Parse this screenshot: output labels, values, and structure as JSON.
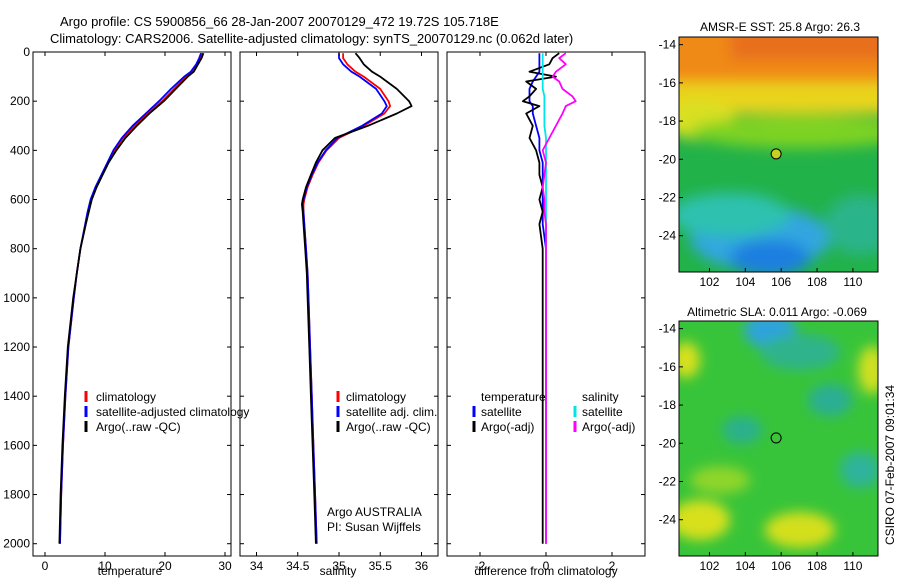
{
  "header": {
    "line1": "Argo profile: CS 5900856_66 28-Jan-2007 20070129_472 19.72S 105.718E",
    "line2": "Climatology: CARS2006. Satellite-adjusted climatology: synTS_20070129.nc (0.062d later)"
  },
  "side_label": "CSIRO 07-Feb-2007 09:01:34",
  "colors": {
    "climatology": "#ff0000",
    "satellite": "#0000ff",
    "argo": "#000000",
    "salinity_satellite": "#00e5e5",
    "salinity_argo": "#ff00ff"
  },
  "chart_data": [
    {
      "type": "line",
      "id": "temperature",
      "xlabel": "temperature",
      "xlim": [
        -2,
        31
      ],
      "ylim": [
        0,
        2050
      ],
      "x_ticks": [
        0,
        10,
        20,
        30
      ],
      "y_ticks": [
        0,
        200,
        400,
        600,
        800,
        1000,
        1200,
        1400,
        1600,
        1800,
        2000
      ],
      "y_reversed": true,
      "depth": [
        5,
        25,
        50,
        80,
        100,
        150,
        200,
        250,
        300,
        350,
        400,
        450,
        500,
        550,
        600,
        650,
        700,
        800,
        900,
        1000,
        1200,
        1400,
        1600,
        1800,
        2000
      ],
      "series": [
        {
          "name": "climatology",
          "color": "#ff0000",
          "values": [
            26.2,
            25.9,
            25.4,
            24.5,
            23.5,
            21.5,
            19.5,
            17.2,
            14.9,
            13.0,
            11.6,
            10.5,
            9.5,
            8.5,
            7.7,
            7.2,
            6.8,
            5.9,
            5.3,
            4.8,
            3.9,
            3.4,
            3.0,
            2.7,
            2.5
          ]
        },
        {
          "name": "satellite-adjusted climatology",
          "color": "#0000ff",
          "values": [
            26.0,
            25.7,
            25.2,
            24.3,
            23.2,
            21.0,
            19.0,
            16.8,
            14.6,
            12.8,
            11.4,
            10.4,
            9.4,
            8.4,
            7.6,
            7.1,
            6.7,
            5.9,
            5.3,
            4.8,
            3.9,
            3.4,
            3.0,
            2.7,
            2.5
          ]
        },
        {
          "name": "Argo(..raw -QC)",
          "color": "#000000",
          "values": [
            26.4,
            26.1,
            25.5,
            24.8,
            23.8,
            21.8,
            19.8,
            17.4,
            15.3,
            13.4,
            11.9,
            10.6,
            9.6,
            8.6,
            7.8,
            7.3,
            6.8,
            5.9,
            5.3,
            4.7,
            3.8,
            3.3,
            2.9,
            2.6,
            2.4
          ]
        }
      ],
      "legend": [
        "climatology",
        "satellite-adjusted climatology",
        "Argo(..raw -QC)"
      ],
      "legend_position": "lower-right"
    },
    {
      "type": "line",
      "id": "salinity",
      "xlabel": "salinity",
      "xlim": [
        33.8,
        36.2
      ],
      "ylim": [
        0,
        2050
      ],
      "x_ticks": [
        34,
        34.5,
        35,
        35.5,
        36
      ],
      "y_reversed": true,
      "depth": [
        5,
        25,
        50,
        80,
        100,
        150,
        200,
        220,
        250,
        300,
        350,
        400,
        450,
        500,
        550,
        600,
        620,
        650,
        700,
        800,
        900,
        1000,
        1200,
        1400,
        1600,
        1800,
        2000
      ],
      "series": [
        {
          "name": "climatology",
          "color": "#ff0000",
          "values": [
            35.05,
            35.05,
            35.1,
            35.2,
            35.3,
            35.5,
            35.6,
            35.62,
            35.55,
            35.3,
            35.0,
            34.85,
            34.75,
            34.68,
            34.62,
            34.58,
            34.57,
            34.57,
            34.58,
            34.6,
            34.62,
            34.63,
            34.65,
            34.67,
            34.69,
            34.71,
            34.73
          ]
        },
        {
          "name": "satellite adj. clim.",
          "color": "#0000ff",
          "values": [
            35.0,
            35.0,
            35.05,
            35.15,
            35.25,
            35.45,
            35.55,
            35.58,
            35.52,
            35.28,
            34.98,
            34.84,
            34.74,
            34.67,
            34.61,
            34.57,
            34.56,
            34.57,
            34.58,
            34.6,
            34.62,
            34.63,
            34.65,
            34.67,
            34.69,
            34.71,
            34.73
          ]
        },
        {
          "name": "Argo(..raw -QC)",
          "color": "#000000",
          "values": [
            35.2,
            35.25,
            35.3,
            35.4,
            35.5,
            35.7,
            35.85,
            35.88,
            35.7,
            35.35,
            34.95,
            34.8,
            34.72,
            34.66,
            34.6,
            34.56,
            34.55,
            34.56,
            34.57,
            34.59,
            34.61,
            34.62,
            34.64,
            34.66,
            34.68,
            34.7,
            34.72
          ]
        }
      ],
      "legend": [
        "climatology",
        "satellite adj. clim.",
        "Argo(..raw -QC)"
      ],
      "legend_position": "lower-right",
      "annotation": [
        "Argo AUSTRALIA",
        "PI: Susan Wijffels"
      ]
    },
    {
      "type": "line",
      "id": "difference",
      "xlabel": "difference from climatology",
      "xlim": [
        -3,
        3
      ],
      "ylim": [
        0,
        2050
      ],
      "x_ticks": [
        -2,
        0,
        2
      ],
      "y_reversed": true,
      "depth": [
        5,
        25,
        50,
        80,
        100,
        120,
        150,
        180,
        200,
        220,
        250,
        300,
        350,
        400,
        450,
        500,
        550,
        600,
        650,
        700,
        800,
        1000,
        1200,
        1400,
        1600,
        1800,
        2000
      ],
      "series": [
        {
          "name": "temperature satellite",
          "color": "#0000ff",
          "values": [
            -0.2,
            -0.2,
            -0.2,
            -0.2,
            -0.3,
            -0.4,
            -0.5,
            -0.5,
            -0.5,
            -0.4,
            -0.4,
            -0.3,
            -0.2,
            -0.2,
            -0.1,
            -0.1,
            -0.1,
            -0.1,
            -0.1,
            -0.1,
            0,
            0,
            0,
            0,
            0,
            0,
            0
          ]
        },
        {
          "name": "temperature Argo(-adj)",
          "color": "#000000",
          "values": [
            0.4,
            0.2,
            0.1,
            -0.5,
            0.3,
            -0.6,
            -0.3,
            -0.5,
            -0.7,
            -0.2,
            -0.6,
            -0.4,
            -0.5,
            -0.3,
            -0.2,
            -0.2,
            -0.1,
            -0.2,
            -0.1,
            -0.2,
            -0.1,
            -0.1,
            -0.1,
            -0.1,
            -0.1,
            -0.1,
            -0.1
          ]
        },
        {
          "name": "salinity satellite",
          "color": "#00e5e5",
          "values": [
            -0.1,
            -0.1,
            -0.1,
            -0.1,
            -0.1,
            -0.1,
            -0.1,
            -0.05,
            -0.05,
            -0.05,
            -0.05,
            -0.05,
            0,
            0,
            0,
            0,
            0,
            0,
            0,
            0,
            0,
            0,
            0,
            0,
            0,
            0,
            0
          ]
        },
        {
          "name": "salinity Argo(-adj)",
          "color": "#ff00ff",
          "values": [
            0.6,
            0.4,
            0.6,
            0.3,
            0.2,
            0.4,
            0.5,
            0.8,
            0.9,
            0.6,
            0.5,
            0.3,
            0.1,
            -0.1,
            0,
            -0.05,
            -0.1,
            -0.05,
            -0.05,
            0,
            0,
            0,
            0,
            0,
            0,
            0,
            0
          ]
        }
      ],
      "legend_left": [
        "temperature",
        "satellite",
        "Argo(-adj)"
      ],
      "legend_right": [
        "salinity",
        "satellite",
        "Argo(-adj)"
      ],
      "legend_position": "lower-center"
    },
    {
      "type": "heatmap",
      "id": "sst_map",
      "title": "AMSR-E SST: 25.8  Argo: 26.3",
      "x_ticks": [
        102,
        104,
        106,
        108,
        110
      ],
      "y_ticks": [
        -14,
        -16,
        -18,
        -20,
        -22,
        -24
      ],
      "xlim": [
        100.3,
        111.4
      ],
      "ylim": [
        -25.9,
        -13.6
      ],
      "marker": {
        "lon": 105.718,
        "lat": -19.72
      }
    },
    {
      "type": "heatmap",
      "id": "sla_map",
      "title": "Altimetric SLA: 0.011  Argo: -0.069",
      "x_ticks": [
        102,
        104,
        106,
        108,
        110
      ],
      "y_ticks": [
        -14,
        -16,
        -18,
        -20,
        -22,
        -24
      ],
      "xlim": [
        100.3,
        111.4
      ],
      "ylim": [
        -25.9,
        -13.6
      ],
      "marker": {
        "lon": 105.718,
        "lat": -19.72
      }
    }
  ]
}
